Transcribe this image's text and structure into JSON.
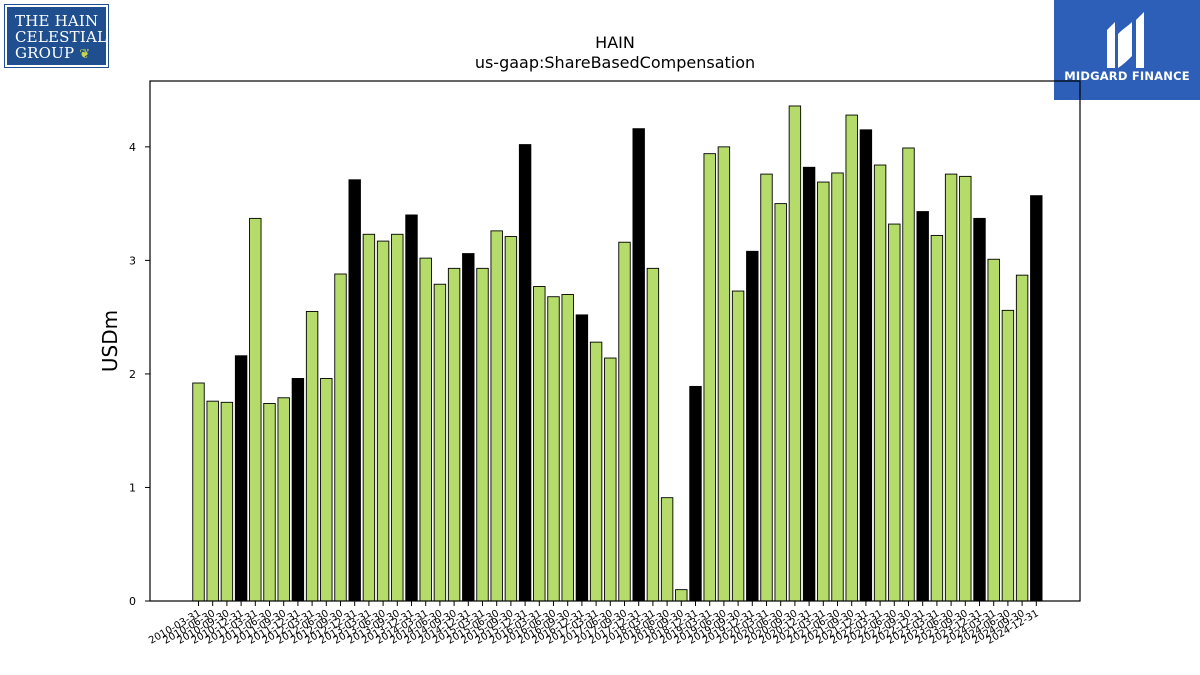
{
  "logos": {
    "hain": [
      "THE HAIN",
      "CELESTIAL",
      "GROUP"
    ],
    "midgard": "MIDGARD FINANCE"
  },
  "colors": {
    "bar": "#b5dc6a",
    "bar_highlight": "#000000",
    "edge": "#000000"
  },
  "chart_data": {
    "type": "bar",
    "title": "HAIN",
    "subtitle": "us-gaap:ShareBasedCompensation",
    "xlabel": "",
    "ylabel": "USDm",
    "ylim": [
      0,
      4.58
    ],
    "yticks": [
      0,
      1,
      2,
      3,
      4
    ],
    "grid": false,
    "categories": [
      "2010-03-31",
      "2010-06-30",
      "2010-09-30",
      "2010-12-31",
      "2011-03-31",
      "2011-06-30",
      "2011-09-30",
      "2011-12-31",
      "2012-03-31",
      "2012-06-30",
      "2012-09-30",
      "2012-12-31",
      "2013-03-31",
      "2013-06-30",
      "2013-09-30",
      "2013-12-31",
      "2014-03-31",
      "2014-06-30",
      "2014-09-30",
      "2014-12-31",
      "2015-03-31",
      "2015-06-30",
      "2015-09-30",
      "2015-12-31",
      "2016-03-31",
      "2016-06-30",
      "2016-09-30",
      "2016-12-31",
      "2017-03-31",
      "2017-06-30",
      "2017-09-30",
      "2017-12-31",
      "2018-03-31",
      "2018-06-30",
      "2018-09-30",
      "2018-12-31",
      "2019-03-31",
      "2019-06-30",
      "2019-09-30",
      "2019-12-31",
      "2020-03-31",
      "2020-06-30",
      "2020-09-30",
      "2020-12-31",
      "2021-03-31",
      "2021-06-30",
      "2021-09-30",
      "2021-12-31",
      "2022-03-31",
      "2022-06-30",
      "2022-09-30",
      "2022-12-31",
      "2023-03-31",
      "2023-06-30",
      "2023-09-30",
      "2023-12-31",
      "2024-03-31",
      "2024-06-30",
      "2024-09-30",
      "2024-12-31"
    ],
    "tick_labels": [
      "2010-03-31",
      "2010-06-30",
      "2010-09-30",
      "2010-12-31",
      "2011-03-31",
      "2011-06-30",
      "2011-09-30",
      "2011-12-31",
      "2012-03-31",
      "2012-06-30",
      "2012-09-30",
      "2012-12-31",
      "2013-03-31",
      "2013-06-30",
      "2013-09-30",
      "2013-12-31",
      "2014-03-31",
      "2014-06-30",
      "2014-09-30",
      "2014-12-31",
      "2015-03-31",
      "2015-06-30",
      "2015-09-30",
      "2015-12-31",
      "2016-03-31",
      "2016-06-30",
      "2016-09-30",
      "2016-12-31",
      "2017-03-31",
      "2017-06-30",
      "2017-09-30",
      "2017-12-31",
      "2018-03-31",
      "2018-06-30",
      "2018-09-30",
      "2018-12-31",
      "2019-03-31",
      "2019-06-30",
      "2019-09-30",
      "2019-12-31",
      "2020-03-31",
      "2020-06-30",
      "2020-09-30",
      "2020-12-31",
      "2021-03-31",
      "2021-06-30",
      "2021-09-30",
      "2021-12-31",
      "2022-03-31",
      "2022-06-30",
      "2022-09-30",
      "2022-12-31",
      "2023-03-31",
      "2023-06-30",
      "2023-09-30",
      "2023-12-31",
      "2024-03-31",
      "2024-06-30",
      "2024-09-30",
      "2024-12-31"
    ],
    "values": [
      1.92,
      1.76,
      1.75,
      2.16,
      3.37,
      1.74,
      1.79,
      1.96,
      2.55,
      1.96,
      2.88,
      3.71,
      3.23,
      3.17,
      3.23,
      3.4,
      3.02,
      2.79,
      2.93,
      3.06,
      2.93,
      3.26,
      3.21,
      4.02,
      2.77,
      2.68,
      2.7,
      2.52,
      2.28,
      2.14,
      3.16,
      4.16,
      2.93,
      0.91,
      0.1,
      1.89,
      3.94,
      4.0,
      2.73,
      3.08,
      3.76,
      3.5,
      4.36,
      3.82,
      3.69,
      3.77,
      4.28,
      4.15,
      3.84,
      3.32,
      3.99,
      3.43,
      3.22,
      3.76,
      3.74,
      3.37,
      3.01,
      2.56,
      2.87,
      3.57
    ],
    "highlight": [
      false,
      false,
      false,
      true,
      false,
      false,
      false,
      true,
      false,
      false,
      false,
      true,
      false,
      false,
      false,
      true,
      false,
      false,
      false,
      true,
      false,
      false,
      false,
      true,
      false,
      false,
      false,
      true,
      false,
      false,
      false,
      true,
      false,
      false,
      false,
      true,
      false,
      false,
      false,
      true,
      false,
      false,
      false,
      true,
      false,
      false,
      false,
      true,
      false,
      false,
      false,
      true,
      false,
      false,
      false,
      true,
      false,
      false,
      false,
      true
    ]
  }
}
